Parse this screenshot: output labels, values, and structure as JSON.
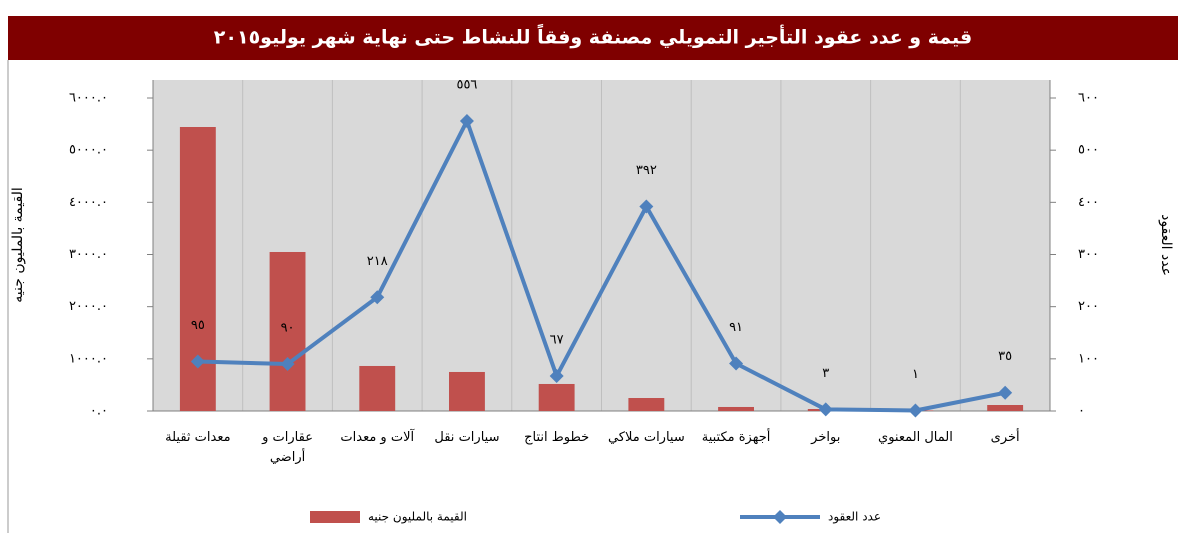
{
  "chart_data": {
    "type": "combo",
    "title": "قيمة و عدد عقود التأجير التمويلي مصنفة وفقاً للنشاط حتى نهاية شهر يوليو٢٠١٥",
    "ylabel": "القيمة بالمليون جنيه",
    "y2label": "عدد العقود",
    "categories": [
      "معدات ثقيلة",
      "عقارات و\nأراضي",
      "آلات و معدات",
      "سيارات نقل",
      "خطوط انتاج",
      "سيارات ملاكي",
      "أجهزة مكتبية",
      "بواخر",
      "المال المعنوي",
      "أخرى"
    ],
    "series": [
      {
        "name": "القيمة بالمليون جنيه",
        "type": "bar",
        "color": "#c0504d",
        "values": [
          5444,
          3048,
          863,
          748,
          518,
          249,
          77,
          38,
          10,
          115
        ]
      },
      {
        "name": "عدد العقود",
        "type": "line",
        "axis": "y2",
        "color": "#4f81bd",
        "values": [
          95,
          90,
          218,
          556,
          67,
          392,
          91,
          3,
          1,
          35
        ],
        "value_labels": [
          "٩٥",
          "٩٠",
          "٢١٨",
          "٥٥٦",
          "٦٧",
          "٣٩٢",
          "٩١",
          "٣",
          "١",
          "٣٥"
        ]
      }
    ],
    "ylim": [
      0,
      6000
    ],
    "yticks": [
      {
        "value": 0,
        "label": "٠.٠"
      },
      {
        "value": 1000,
        "label": "١٠٠٠.٠"
      },
      {
        "value": 2000,
        "label": "٢٠٠٠.٠"
      },
      {
        "value": 3000,
        "label": "٣٠٠٠.٠"
      },
      {
        "value": 4000,
        "label": "٤٠٠٠.٠"
      },
      {
        "value": 5000,
        "label": "٥٠٠٠.٠"
      },
      {
        "value": 6000,
        "label": "٦٠٠٠.٠"
      }
    ],
    "y2lim": [
      0,
      600
    ],
    "y2ticks": [
      {
        "value": 0,
        "label": "٠"
      },
      {
        "value": 100,
        "label": "١٠٠"
      },
      {
        "value": 200,
        "label": "٢٠٠"
      },
      {
        "value": 300,
        "label": "٣٠٠"
      },
      {
        "value": 400,
        "label": "٤٠٠"
      },
      {
        "value": 500,
        "label": "٥٠٠"
      },
      {
        "value": 600,
        "label": "٦٠٠"
      }
    ],
    "legend": "bottom"
  }
}
